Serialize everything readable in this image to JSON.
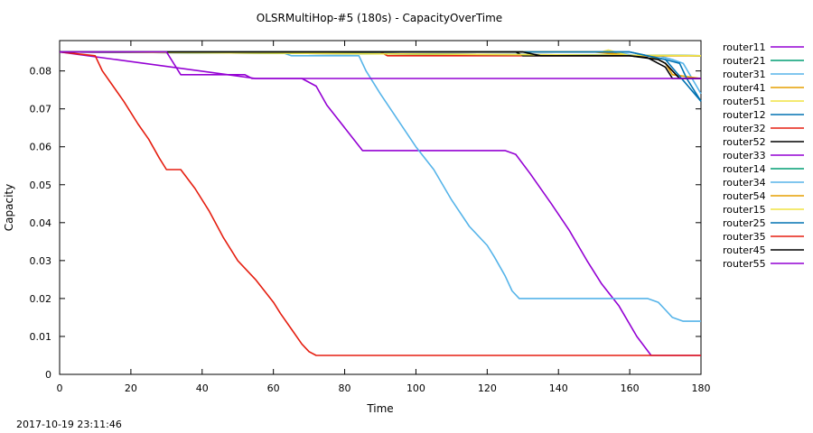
{
  "chart_data": {
    "type": "line",
    "title": "OLSRMultiHop-#5 (180s) - CapacityOverTime",
    "xlabel": "Time",
    "ylabel": "Capacity",
    "xlim": [
      0,
      180
    ],
    "ylim": [
      0,
      0.088
    ],
    "xticks": [
      0,
      20,
      40,
      60,
      80,
      100,
      120,
      140,
      160,
      180
    ],
    "xtick_labels": [
      "0",
      "20",
      "40",
      "60",
      "80",
      "100",
      "120",
      "140",
      "160",
      "180"
    ],
    "yticks": [
      0,
      0.01,
      0.02,
      0.03,
      0.04,
      0.05,
      0.06,
      0.07,
      0.08
    ],
    "ytick_labels": [
      "0",
      "0.01",
      "0.02",
      "0.03",
      "0.04",
      "0.05",
      "0.06",
      "0.07",
      "0.08"
    ],
    "grid": false,
    "legend_position": "right",
    "series": [
      {
        "name": "router11",
        "color": "#9400d3",
        "x": [
          0,
          180
        ],
        "y": [
          0.085,
          0.084
        ]
      },
      {
        "name": "router21",
        "color": "#009e73",
        "x": [
          0,
          180
        ],
        "y": [
          0.085,
          0.084
        ]
      },
      {
        "name": "router31",
        "color": "#56b4e9",
        "x": [
          0,
          155,
          162,
          168,
          172,
          175,
          180
        ],
        "y": [
          0.085,
          0.085,
          0.084,
          0.084,
          0.083,
          0.082,
          0.074
        ]
      },
      {
        "name": "router41",
        "color": "#e69f00",
        "x": [
          0,
          152,
          160,
          165,
          168,
          170,
          172,
          180
        ],
        "y": [
          0.085,
          0.085,
          0.084,
          0.084,
          0.083,
          0.082,
          0.079,
          0.078
        ]
      },
      {
        "name": "router51",
        "color": "#f0e442",
        "x": [
          0,
          152,
          154,
          156,
          160,
          180
        ],
        "y": [
          0.085,
          0.085,
          0.0855,
          0.085,
          0.084,
          0.084
        ]
      },
      {
        "name": "router12",
        "color": "#0072b2",
        "x": [
          0,
          160,
          165,
          170,
          174,
          176,
          180
        ],
        "y": [
          0.085,
          0.085,
          0.084,
          0.083,
          0.082,
          0.078,
          0.072
        ]
      },
      {
        "name": "router32",
        "color": "#e51e10",
        "x": [
          0,
          90,
          92,
          180
        ],
        "y": [
          0.085,
          0.085,
          0.084,
          0.084
        ]
      },
      {
        "name": "router52",
        "color": "#000000",
        "x": [
          0,
          128,
          130,
          140,
          160,
          164,
          168,
          170,
          172,
          174,
          180
        ],
        "y": [
          0.085,
          0.085,
          0.084,
          0.084,
          0.084,
          0.0835,
          0.083,
          0.082,
          0.08,
          0.078,
          0.078
        ]
      },
      {
        "name": "router33",
        "color": "#9400d3",
        "x": [
          0,
          55,
          68,
          72,
          75,
          80,
          85,
          125,
          128,
          132,
          138,
          143,
          148,
          152,
          157,
          162,
          166,
          170,
          180
        ],
        "y": [
          0.085,
          0.078,
          0.078,
          0.076,
          0.071,
          0.065,
          0.059,
          0.059,
          0.058,
          0.053,
          0.045,
          0.038,
          0.03,
          0.024,
          0.018,
          0.01,
          0.005,
          0.005,
          0.005
        ]
      },
      {
        "name": "router14",
        "color": "#009e73",
        "x": [
          0,
          180
        ],
        "y": [
          0.085,
          0.084
        ]
      },
      {
        "name": "router34",
        "color": "#56b4e9",
        "x": [
          0,
          62,
          65,
          84,
          86,
          90,
          95,
          100,
          105,
          110,
          115,
          120,
          122,
          125,
          127,
          129,
          160,
          165,
          168,
          170,
          172,
          175,
          180
        ],
        "y": [
          0.085,
          0.085,
          0.084,
          0.084,
          0.08,
          0.074,
          0.067,
          0.06,
          0.054,
          0.046,
          0.039,
          0.034,
          0.031,
          0.026,
          0.022,
          0.02,
          0.02,
          0.02,
          0.019,
          0.017,
          0.015,
          0.014,
          0.014
        ]
      },
      {
        "name": "router54",
        "color": "#e69f00",
        "x": [
          0,
          150,
          160,
          180
        ],
        "y": [
          0.085,
          0.085,
          0.084,
          0.084
        ]
      },
      {
        "name": "router15",
        "color": "#f0e442",
        "x": [
          0,
          180
        ],
        "y": [
          0.085,
          0.084
        ]
      },
      {
        "name": "router25",
        "color": "#0072b2",
        "x": [
          0,
          160,
          165,
          170,
          180
        ],
        "y": [
          0.085,
          0.085,
          0.084,
          0.083,
          0.072
        ]
      },
      {
        "name": "router35",
        "color": "#e51e10",
        "x": [
          0,
          10,
          12,
          15,
          18,
          22,
          25,
          28,
          30,
          34,
          38,
          42,
          46,
          50,
          55,
          60,
          62,
          65,
          68,
          70,
          72,
          180
        ],
        "y": [
          0.085,
          0.084,
          0.08,
          0.076,
          0.072,
          0.066,
          0.062,
          0.057,
          0.054,
          0.054,
          0.049,
          0.043,
          0.036,
          0.03,
          0.025,
          0.019,
          0.016,
          0.012,
          0.008,
          0.006,
          0.005,
          0.005
        ]
      },
      {
        "name": "router45",
        "color": "#000000",
        "x": [
          0,
          130,
          135,
          160,
          165,
          170,
          172,
          180
        ],
        "y": [
          0.085,
          0.085,
          0.084,
          0.084,
          0.0835,
          0.081,
          0.078,
          0.078
        ]
      },
      {
        "name": "router55",
        "color": "#9400d3",
        "x": [
          0,
          30,
          32,
          34,
          38,
          52,
          54,
          60,
          62,
          180
        ],
        "y": [
          0.085,
          0.085,
          0.082,
          0.079,
          0.079,
          0.079,
          0.078,
          0.078,
          0.078,
          0.078
        ]
      }
    ]
  },
  "footer": {
    "timestamp": "2017-10-19 23:11:46"
  }
}
